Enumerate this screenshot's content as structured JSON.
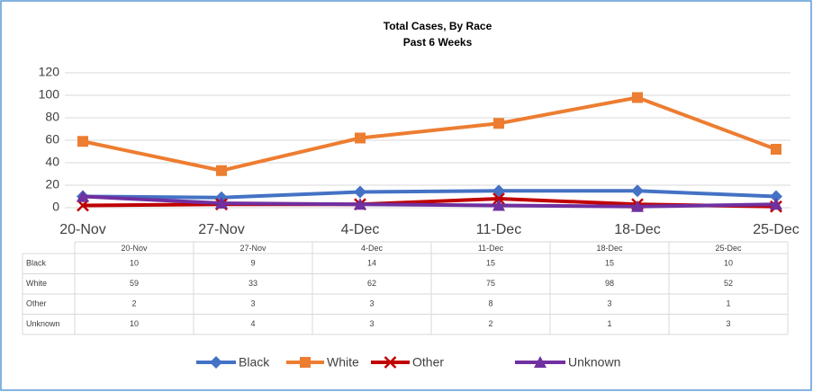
{
  "chart_data": {
    "type": "line",
    "title": "Total Cases, By Race",
    "subtitle": "Past 6 Weeks",
    "categories": [
      "20-Nov",
      "27-Nov",
      "4-Dec",
      "11-Dec",
      "18-Dec",
      "25-Dec"
    ],
    "series": [
      {
        "name": "Black",
        "color": "#4472c4",
        "marker": "diamond",
        "values": [
          10,
          9,
          14,
          15,
          15,
          10
        ]
      },
      {
        "name": "White",
        "color": "#ed7d31",
        "marker": "square",
        "values": [
          59,
          33,
          62,
          75,
          98,
          52
        ]
      },
      {
        "name": "Other",
        "color": "#c00000",
        "marker": "x",
        "values": [
          2,
          3,
          3,
          8,
          3,
          1
        ]
      },
      {
        "name": "Unknown",
        "color": "#7030a0",
        "marker": "triangle",
        "values": [
          10,
          4,
          3,
          2,
          1,
          3
        ]
      }
    ],
    "ylim": [
      0,
      120
    ],
    "yticks": [
      0,
      20,
      40,
      60,
      80,
      100,
      120
    ],
    "grid": true,
    "legend": "bottom",
    "data_table": true
  }
}
